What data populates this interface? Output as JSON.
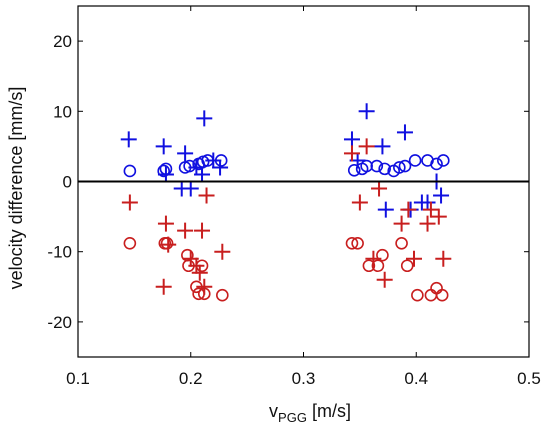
{
  "chart_data": {
    "type": "scatter",
    "title": "",
    "xlabel": "v",
    "xlabel_sub": "PGG",
    "xlabel_unit": " [m/s]",
    "ylabel": "velocity difference [mm/s]",
    "xlim": [
      0.1,
      0.5
    ],
    "ylim": [
      -25,
      25
    ],
    "xticks": [
      0.1,
      0.2,
      0.3,
      0.4,
      0.5
    ],
    "xtick_labels": [
      "0.1",
      "0.2",
      "0.3",
      "0.4",
      "0.5"
    ],
    "yticks": [
      -20,
      -10,
      0,
      10,
      20
    ],
    "ytick_labels": [
      "-20",
      "-10",
      "0",
      "10",
      "20"
    ],
    "grid": false,
    "zero_line": 0,
    "series": [
      {
        "marker": "plus",
        "color": "#1010e0",
        "points": [
          [
            0.145,
            6
          ],
          [
            0.176,
            5
          ],
          [
            0.178,
            1
          ],
          [
            0.192,
            -1
          ],
          [
            0.195,
            4
          ],
          [
            0.2,
            -1
          ],
          [
            0.205,
            2
          ],
          [
            0.21,
            1
          ],
          [
            0.212,
            9
          ],
          [
            0.22,
            3
          ],
          [
            0.226,
            2
          ],
          [
            0.343,
            6
          ],
          [
            0.348,
            3
          ],
          [
            0.356,
            10
          ],
          [
            0.37,
            5
          ],
          [
            0.373,
            -4
          ],
          [
            0.39,
            7
          ],
          [
            0.395,
            -4
          ],
          [
            0.405,
            -3
          ],
          [
            0.41,
            -3
          ],
          [
            0.418,
            0
          ],
          [
            0.422,
            -2
          ]
        ]
      },
      {
        "marker": "circle",
        "color": "#1010e0",
        "points": [
          [
            0.146,
            1.5
          ],
          [
            0.176,
            1.5
          ],
          [
            0.178,
            1.8
          ],
          [
            0.195,
            2
          ],
          [
            0.199,
            2.2
          ],
          [
            0.207,
            2.5
          ],
          [
            0.211,
            2.8
          ],
          [
            0.215,
            3
          ],
          [
            0.227,
            3
          ],
          [
            0.345,
            1.6
          ],
          [
            0.352,
            1.8
          ],
          [
            0.356,
            2.2
          ],
          [
            0.365,
            2.2
          ],
          [
            0.372,
            1.8
          ],
          [
            0.38,
            1.5
          ],
          [
            0.385,
            2
          ],
          [
            0.39,
            2.2
          ],
          [
            0.399,
            3
          ],
          [
            0.41,
            3
          ],
          [
            0.418,
            2.5
          ],
          [
            0.424,
            3
          ]
        ]
      },
      {
        "marker": "plus",
        "color": "#c81e1e",
        "points": [
          [
            0.146,
            -3
          ],
          [
            0.176,
            -15
          ],
          [
            0.178,
            -6
          ],
          [
            0.18,
            -9
          ],
          [
            0.195,
            -7
          ],
          [
            0.2,
            -11
          ],
          [
            0.205,
            -12
          ],
          [
            0.208,
            -13
          ],
          [
            0.21,
            -7
          ],
          [
            0.212,
            -15
          ],
          [
            0.214,
            -2
          ],
          [
            0.228,
            -10
          ],
          [
            0.343,
            4
          ],
          [
            0.35,
            -3
          ],
          [
            0.356,
            5
          ],
          [
            0.362,
            -11
          ],
          [
            0.367,
            -1
          ],
          [
            0.372,
            -14
          ],
          [
            0.387,
            -6
          ],
          [
            0.393,
            -4
          ],
          [
            0.398,
            -11
          ],
          [
            0.41,
            -6
          ],
          [
            0.413,
            -4
          ],
          [
            0.42,
            -5
          ],
          [
            0.424,
            -11
          ]
        ]
      },
      {
        "marker": "circle",
        "color": "#c81e1e",
        "points": [
          [
            0.146,
            -8.8
          ],
          [
            0.177,
            -8.8
          ],
          [
            0.179,
            -8.8
          ],
          [
            0.197,
            -10.5
          ],
          [
            0.198,
            -12
          ],
          [
            0.205,
            -15
          ],
          [
            0.207,
            -16
          ],
          [
            0.21,
            -12
          ],
          [
            0.212,
            -16
          ],
          [
            0.228,
            -16.2
          ],
          [
            0.343,
            -8.8
          ],
          [
            0.348,
            -8.8
          ],
          [
            0.358,
            -12
          ],
          [
            0.366,
            -12
          ],
          [
            0.37,
            -10.5
          ],
          [
            0.387,
            -8.8
          ],
          [
            0.392,
            -12
          ],
          [
            0.401,
            -16.2
          ],
          [
            0.413,
            -16.2
          ],
          [
            0.418,
            -15.2
          ],
          [
            0.423,
            -16.2
          ]
        ]
      }
    ]
  }
}
